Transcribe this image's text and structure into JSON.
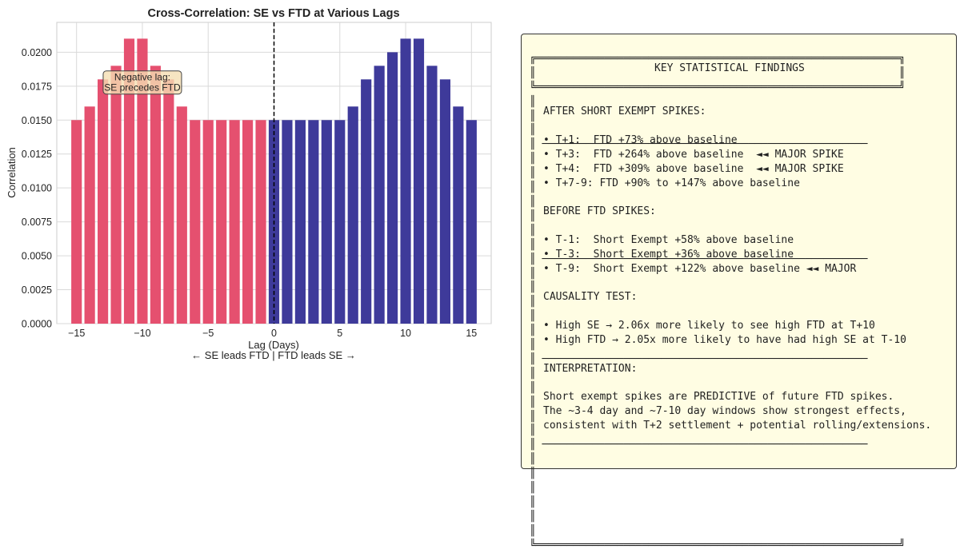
{
  "chart_data": {
    "type": "bar",
    "title": "Cross-Correlation: SE vs FTD at Various Lags",
    "xlabel": "Lag (Days)",
    "xlabel_sub": "← SE leads FTD | FTD leads SE →",
    "ylabel": "Correlation",
    "xlim": [
      -16.5,
      16.5
    ],
    "ylim": [
      0,
      0.0222
    ],
    "xticks": [
      "−15",
      "−10",
      "−5",
      "0",
      "5",
      "10",
      "15"
    ],
    "yticks": [
      "0.0000",
      "0.0025",
      "0.0050",
      "0.0075",
      "0.0100",
      "0.0125",
      "0.0150",
      "0.0175",
      "0.0200"
    ],
    "grid": true,
    "x": [
      -15,
      -14,
      -13,
      -12,
      -11,
      -10,
      -9,
      -8,
      -7,
      -6,
      -5,
      -4,
      -3,
      -2,
      -1,
      0,
      1,
      2,
      3,
      4,
      5,
      6,
      7,
      8,
      9,
      10,
      11,
      12,
      13,
      14,
      15
    ],
    "values": [
      0.015,
      0.016,
      0.018,
      0.019,
      0.021,
      0.021,
      0.019,
      0.018,
      0.016,
      0.015,
      0.015,
      0.015,
      0.015,
      0.015,
      0.015,
      0.015,
      0.015,
      0.015,
      0.015,
      0.015,
      0.015,
      0.016,
      0.018,
      0.019,
      0.02,
      0.021,
      0.021,
      0.019,
      0.018,
      0.016,
      0.015
    ],
    "colors": {
      "negative_lag": "#e5506f",
      "non_negative_lag": "#3e3a9a",
      "zero_line": "#000000"
    },
    "annotation": {
      "text_line1": "Negative lag:",
      "text_line2": "SE precedes FTD",
      "x": -10,
      "y": 0.0178
    }
  },
  "findings": {
    "title": "KEY STATISTICAL FINDINGS",
    "sections": [
      {
        "heading": "AFTER SHORT EXEMPT SPIKES:",
        "lines": [
          "• T+1:  FTD +73% above baseline",
          "• T+3:  FTD +264% above baseline  ◄◄ MAJOR SPIKE",
          "• T+4:  FTD +309% above baseline  ◄◄ MAJOR SPIKE",
          "• T+7-9: FTD +90% to +147% above baseline"
        ]
      },
      {
        "heading": "BEFORE FTD SPIKES:",
        "lines": [
          "• T-1:  Short Exempt +58% above baseline",
          "• T-3:  Short Exempt +36% above baseline",
          "• T-9:  Short Exempt +122% above baseline ◄◄ MAJOR"
        ]
      },
      {
        "heading": "CAUSALITY TEST:",
        "lines": [
          "• High SE → 2.06x more likely to see high FTD at T+10",
          "• High FTD → 2.05x more likely to have had high SE at T-10"
        ]
      },
      {
        "heading": "INTERPRETATION:",
        "lines": [
          "Short exempt spikes are PREDICTIVE of future FTD spikes.",
          "The ~3-4 day and ~7-10 day windows show strongest effects,",
          "consistent with T+2 settlement + potential rolling/extensions."
        ]
      }
    ]
  }
}
